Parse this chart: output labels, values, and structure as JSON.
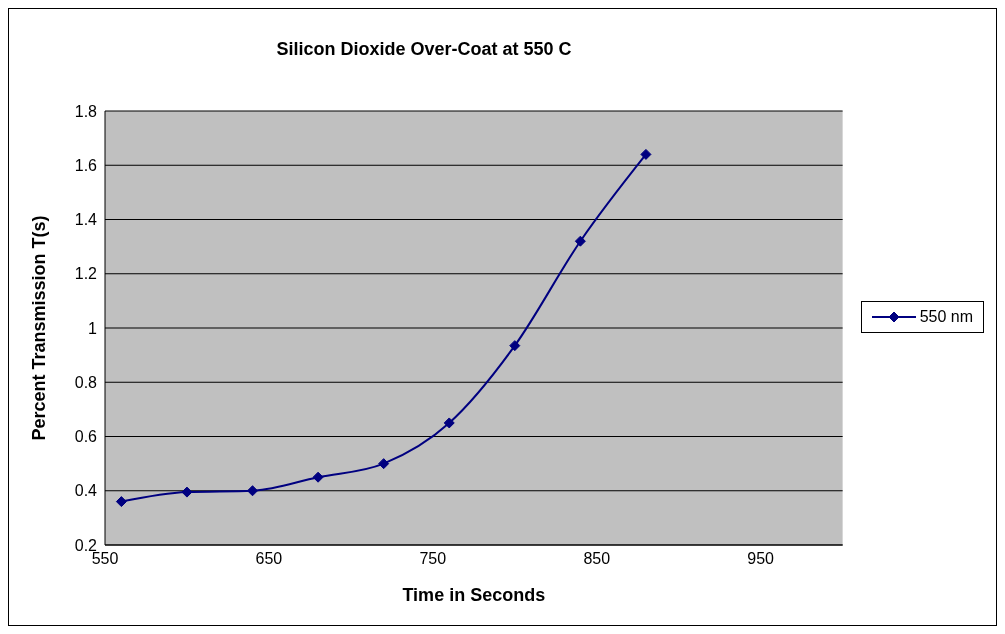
{
  "chart_data": {
    "type": "line",
    "title": "Silicon Dioxide Over-Coat at 550 C",
    "xlabel": "Time in Seconds",
    "ylabel": "Percent Transmission T(s)",
    "x": [
      560,
      600,
      640,
      680,
      720,
      760,
      800,
      840,
      880
    ],
    "series": [
      {
        "name": "550 nm",
        "color": "#000080",
        "values": [
          0.36,
          0.395,
          0.4,
          0.45,
          0.5,
          0.65,
          0.935,
          1.32,
          1.64
        ]
      }
    ],
    "xlim": [
      550,
      1000
    ],
    "xticks": [
      550,
      650,
      750,
      850,
      950
    ],
    "ylim": [
      0.2,
      1.8
    ],
    "yticks": [
      0.2,
      0.4,
      0.6,
      0.8,
      1,
      1.2,
      1.4,
      1.6,
      1.8
    ],
    "grid": "y",
    "legend": "right",
    "marker": "diamond",
    "line_style": "solid"
  }
}
